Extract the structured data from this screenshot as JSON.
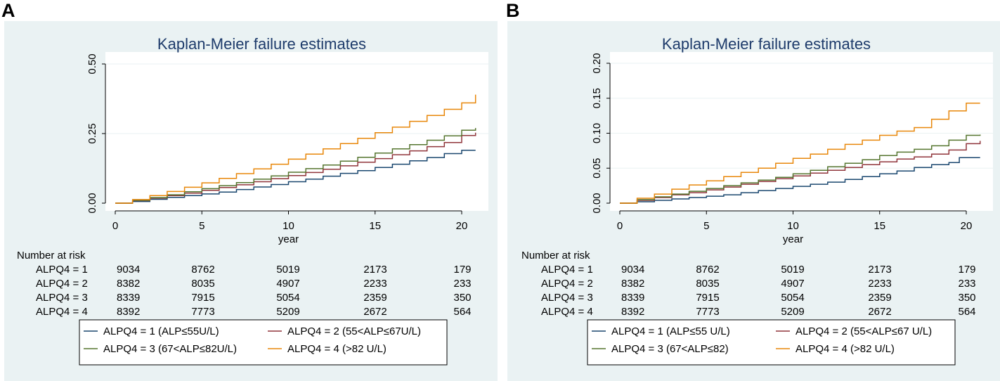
{
  "chart_data": [
    {
      "type": "line",
      "panel_label": "A",
      "title": "Kaplan-Meier failure estimates",
      "xlabel": "year",
      "ylabel": "",
      "xlim": [
        0,
        21
      ],
      "ylim": [
        0,
        0.52
      ],
      "x_ticks": [
        0,
        5,
        10,
        15,
        20
      ],
      "x_tick_labels": [
        "0",
        "5",
        "10",
        "15",
        "20"
      ],
      "y_ticks": [
        0,
        0.25,
        0.5
      ],
      "y_tick_labels": [
        "0.00",
        "0.25",
        "0.50"
      ],
      "grid": true,
      "series": [
        {
          "name": "ALPQ4 = 1 (ALP≤55U/L)",
          "color": "#1a476f",
          "x": [
            0,
            1,
            2,
            3,
            4,
            5,
            6,
            7,
            8,
            9,
            10,
            11,
            12,
            13,
            14,
            15,
            16,
            17,
            18,
            19,
            20,
            20.8
          ],
          "y": [
            0,
            0.006,
            0.014,
            0.021,
            0.027,
            0.033,
            0.04,
            0.049,
            0.058,
            0.067,
            0.077,
            0.086,
            0.097,
            0.107,
            0.117,
            0.128,
            0.14,
            0.152,
            0.164,
            0.178,
            0.19,
            0.19
          ]
        },
        {
          "name": "ALPQ4 = 2 (55<ALP≤67U/L)",
          "color": "#90353b",
          "x": [
            0,
            1,
            2,
            3,
            4,
            5,
            6,
            7,
            8,
            9,
            10,
            11,
            12,
            13,
            14,
            15,
            16,
            17,
            18,
            19,
            20,
            20.8
          ],
          "y": [
            0,
            0.009,
            0.018,
            0.027,
            0.036,
            0.046,
            0.056,
            0.066,
            0.077,
            0.088,
            0.099,
            0.11,
            0.122,
            0.134,
            0.147,
            0.16,
            0.174,
            0.188,
            0.203,
            0.218,
            0.243,
            0.253
          ]
        },
        {
          "name": "ALPQ4 = 3 (67<ALP≤82U/L)",
          "color": "#55752f",
          "x": [
            0,
            1,
            2,
            3,
            4,
            5,
            6,
            7,
            8,
            9,
            10,
            11,
            12,
            13,
            14,
            15,
            16,
            17,
            18,
            19,
            20,
            20.8
          ],
          "y": [
            0,
            0.01,
            0.02,
            0.03,
            0.041,
            0.052,
            0.063,
            0.074,
            0.086,
            0.098,
            0.111,
            0.124,
            0.137,
            0.151,
            0.165,
            0.18,
            0.195,
            0.21,
            0.226,
            0.242,
            0.262,
            0.27
          ]
        },
        {
          "name": "ALPQ4 = 4 (>82 U/L)",
          "color": "#e8870a",
          "x": [
            0,
            1,
            2,
            3,
            4,
            5,
            6,
            7,
            8,
            9,
            10,
            11,
            12,
            13,
            14,
            15,
            16,
            17,
            18,
            19,
            20,
            20.8,
            20.8
          ],
          "y": [
            0,
            0.013,
            0.027,
            0.042,
            0.057,
            0.073,
            0.089,
            0.106,
            0.123,
            0.14,
            0.158,
            0.176,
            0.195,
            0.214,
            0.233,
            0.253,
            0.273,
            0.294,
            0.315,
            0.337,
            0.36,
            0.37,
            0.39
          ]
        }
      ],
      "risk_table": {
        "header": "Number at risk",
        "rows": [
          {
            "label": "ALPQ4 = 1",
            "values": [
              "9034",
              "8762",
              "5019",
              "2173",
              "179"
            ]
          },
          {
            "label": "ALPQ4 = 2",
            "values": [
              "8382",
              "8035",
              "4907",
              "2233",
              "233"
            ]
          },
          {
            "label": "ALPQ4 = 3",
            "values": [
              "8339",
              "7915",
              "5054",
              "2359",
              "350"
            ]
          },
          {
            "label": "ALPQ4 = 4",
            "values": [
              "8392",
              "7773",
              "5209",
              "2672",
              "564"
            ]
          }
        ]
      },
      "legend": [
        "ALPQ4 = 1 (ALP≤55U/L)",
        "ALPQ4 = 2 (55<ALP≤67U/L)",
        "ALPQ4 = 3 (67<ALP≤82U/L)",
        "ALPQ4 = 4 (>82 U/L)"
      ]
    },
    {
      "type": "line",
      "panel_label": "B",
      "title": "Kaplan-Meier failure estimates",
      "xlabel": "year",
      "ylabel": "",
      "xlim": [
        0,
        21
      ],
      "ylim": [
        0,
        0.208
      ],
      "x_ticks": [
        0,
        5,
        10,
        15,
        20
      ],
      "x_tick_labels": [
        "0",
        "5",
        "10",
        "15",
        "20"
      ],
      "y_ticks": [
        0,
        0.05,
        0.1,
        0.15,
        0.2
      ],
      "y_tick_labels": [
        "0.00",
        "0.05",
        "0.10",
        "0.15",
        "0.20"
      ],
      "grid": true,
      "series": [
        {
          "name": "ALPQ4 = 1 (ALP≤55 U/L)",
          "color": "#1a476f",
          "x": [
            0,
            1,
            2,
            3,
            4,
            5,
            6,
            7,
            8,
            9,
            10,
            11,
            12,
            13,
            14,
            15,
            16,
            17,
            18,
            19,
            19.6,
            19.6,
            20.8
          ],
          "y": [
            0,
            0.002,
            0.004,
            0.006,
            0.008,
            0.01,
            0.012,
            0.015,
            0.018,
            0.021,
            0.024,
            0.027,
            0.03,
            0.034,
            0.038,
            0.042,
            0.046,
            0.051,
            0.055,
            0.058,
            0.058,
            0.065,
            0.065
          ]
        },
        {
          "name": "ALPQ4 = 2 (55<ALP≤67 U/L)",
          "color": "#90353b",
          "x": [
            0,
            1,
            2,
            3,
            4,
            5,
            6,
            7,
            8,
            9,
            10,
            11,
            12,
            13,
            14,
            15,
            16,
            17,
            18,
            19,
            20,
            20.8
          ],
          "y": [
            0,
            0.004,
            0.008,
            0.012,
            0.015,
            0.019,
            0.023,
            0.027,
            0.031,
            0.035,
            0.039,
            0.043,
            0.047,
            0.051,
            0.055,
            0.059,
            0.063,
            0.066,
            0.07,
            0.076,
            0.085,
            0.089
          ]
        },
        {
          "name": "ALPQ4 = 3 (67<ALP≤82)",
          "color": "#55752f",
          "x": [
            0,
            1,
            2,
            3,
            4,
            5,
            6,
            7,
            8,
            9,
            10,
            11,
            12,
            13,
            14,
            15,
            16,
            17,
            18,
            19,
            20,
            20.8
          ],
          "y": [
            0,
            0.005,
            0.009,
            0.013,
            0.017,
            0.021,
            0.025,
            0.029,
            0.033,
            0.037,
            0.042,
            0.047,
            0.052,
            0.057,
            0.062,
            0.068,
            0.073,
            0.077,
            0.082,
            0.09,
            0.097,
            0.098
          ]
        },
        {
          "name": "ALPQ4 = 4 (>82 U/L)",
          "color": "#e8870a",
          "x": [
            0,
            1,
            2,
            3,
            4,
            5,
            6,
            7,
            8,
            9,
            10,
            11,
            12,
            13,
            14,
            15,
            16,
            17,
            18,
            19,
            20,
            20.8
          ],
          "y": [
            0,
            0.007,
            0.013,
            0.02,
            0.026,
            0.032,
            0.038,
            0.044,
            0.05,
            0.057,
            0.064,
            0.07,
            0.077,
            0.084,
            0.09,
            0.097,
            0.103,
            0.108,
            0.12,
            0.132,
            0.143,
            0.143
          ]
        }
      ],
      "risk_table": {
        "header": "Number at risk",
        "rows": [
          {
            "label": "ALPQ4 = 1",
            "values": [
              "9034",
              "8762",
              "5019",
              "2173",
              "179"
            ]
          },
          {
            "label": "ALPQ4 = 2",
            "values": [
              "8382",
              "8035",
              "4907",
              "2233",
              "233"
            ]
          },
          {
            "label": "ALPQ4 = 3",
            "values": [
              "8339",
              "7915",
              "5054",
              "2359",
              "350"
            ]
          },
          {
            "label": "ALPQ4 = 4",
            "values": [
              "8392",
              "7773",
              "5209",
              "2672",
              "564"
            ]
          }
        ]
      },
      "legend": [
        "ALPQ4 = 1 (ALP≤55 U/L)",
        "ALPQ4 = 2 (55<ALP≤67 U/L)",
        "ALPQ4 = 3 (67<ALP≤82)",
        "ALPQ4 = 4 (>82 U/L)"
      ]
    }
  ],
  "colors": {
    "outer_background": "#eaf2f3",
    "plot_background": "#ffffff",
    "grid": "#eaf2f3",
    "title": "#1e3b6b"
  }
}
